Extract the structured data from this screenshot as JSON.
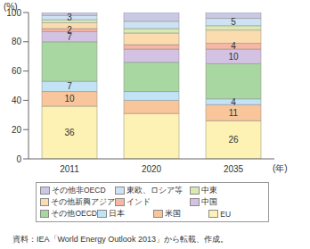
{
  "chart_data": {
    "type": "bar",
    "stacked": true,
    "y_label": "(%)",
    "x_label": "(年)",
    "source": "資料：IEA「World Energy Outlook 2013」から転載、作成。",
    "categories": [
      "2011",
      "2020",
      "2035"
    ],
    "ylim": [
      0,
      100
    ],
    "yticks": [
      0,
      20,
      40,
      60,
      80,
      100
    ],
    "grid": false,
    "series": [
      {
        "name": "EU",
        "color": "#fdf1b3",
        "values": [
          36,
          31,
          26
        ],
        "value_labels": [
          "36",
          null,
          "26"
        ]
      },
      {
        "name": "米国",
        "color": "#f9c59a",
        "values": [
          10,
          9,
          11
        ],
        "value_labels": [
          "10",
          null,
          "11"
        ]
      },
      {
        "name": "日本",
        "color": "#c2e2f5",
        "values": [
          7,
          6,
          4
        ],
        "value_labels": [
          "7",
          null,
          "4"
        ]
      },
      {
        "name": "その他OECD",
        "color": "#a9d7a1",
        "values": [
          27,
          20,
          24
        ],
        "value_labels": [
          null,
          null,
          null
        ]
      },
      {
        "name": "中国",
        "color": "#d3c2e2",
        "values": [
          7,
          9,
          10
        ],
        "value_labels": [
          "7",
          null,
          "10"
        ]
      },
      {
        "name": "インド",
        "color": "#f6b8a4",
        "values": [
          2,
          3,
          4
        ],
        "value_labels": [
          "2",
          null,
          "4"
        ]
      },
      {
        "name": "その他新興アジア",
        "color": "#fbdcae",
        "values": [
          4,
          8,
          9
        ],
        "value_labels": [
          null,
          null,
          null
        ]
      },
      {
        "name": "中東",
        "color": "#d9eab4",
        "values": [
          2,
          3,
          3
        ],
        "value_labels": [
          null,
          null,
          null
        ]
      },
      {
        "name": "東欧、ロシア等",
        "color": "#cde2f2",
        "values": [
          3,
          5,
          5
        ],
        "value_labels": [
          "3",
          null,
          "5"
        ]
      },
      {
        "name": "その他非OECD",
        "color": "#c9c9e6",
        "values": [
          2,
          6,
          4
        ],
        "value_labels": [
          null,
          null,
          null
        ]
      }
    ]
  }
}
